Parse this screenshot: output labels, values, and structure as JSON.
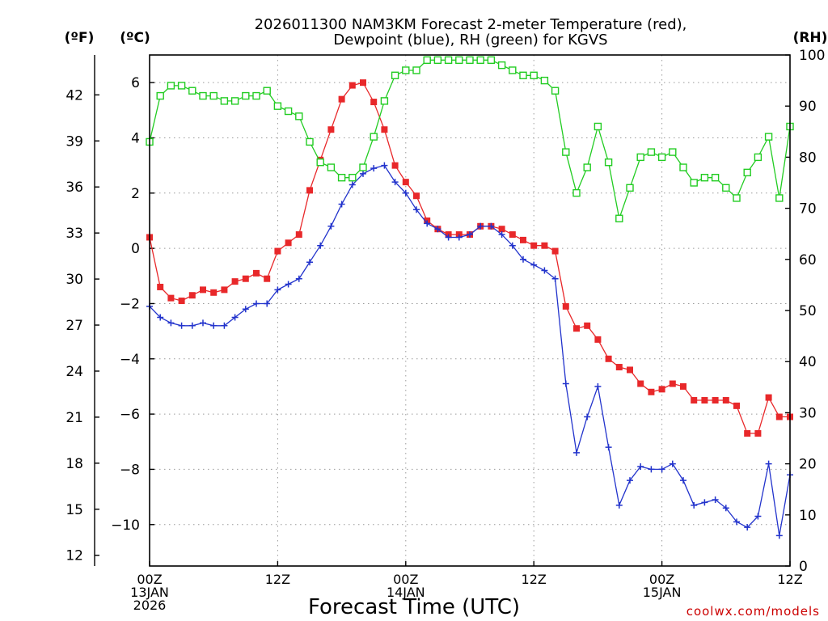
{
  "chart_data": {
    "type": "line",
    "title_line1": "2026011300 NAM3KM Forecast 2-meter Temperature (red),",
    "title_line2": "Dewpoint (blue), RH (green) for KGVS",
    "xlabel": "Forecast Time (UTC)",
    "credit": "coolwx.com/models",
    "units": {
      "fahrenheit": "(ºF)",
      "celsius": "(ºC)",
      "rh": "(RH)"
    },
    "x_range_hours": [
      0,
      60
    ],
    "y_celsius_range": [
      -11.5,
      7
    ],
    "y_rh_range": [
      0,
      100
    ],
    "celsius_ticks": [
      6,
      4,
      2,
      0,
      -2,
      -4,
      -6,
      -8,
      -10
    ],
    "celsius_tick_labels": [
      "6",
      "4",
      "2",
      "0",
      "−2",
      "−4",
      "−6",
      "−8",
      "−10"
    ],
    "fahrenheit_ticks": [
      42,
      39,
      36,
      33,
      30,
      27,
      24,
      21,
      18,
      15,
      12
    ],
    "fahrenheit_tick_labels": [
      "42",
      "39",
      "36",
      "33",
      "30",
      "27",
      "24",
      "21",
      "18",
      "15",
      "12"
    ],
    "rh_ticks": [
      100,
      90,
      80,
      70,
      60,
      50,
      40,
      30,
      20,
      10,
      0
    ],
    "rh_tick_labels": [
      "100",
      "90",
      "80",
      "70",
      "60",
      "50",
      "40",
      "30",
      "20",
      "10",
      "0"
    ],
    "x_ticks": [
      {
        "hour": 0,
        "lines": [
          "00Z",
          "13JAN",
          "2026"
        ]
      },
      {
        "hour": 12,
        "lines": [
          "12Z"
        ]
      },
      {
        "hour": 24,
        "lines": [
          "00Z",
          "14JAN"
        ]
      },
      {
        "hour": 36,
        "lines": [
          "12Z"
        ]
      },
      {
        "hour": 48,
        "lines": [
          "00Z",
          "15JAN"
        ]
      },
      {
        "hour": 60,
        "lines": [
          "12Z"
        ]
      }
    ],
    "series": [
      {
        "name": "2-meter Temperature",
        "units": "degC",
        "color": "#e8282a",
        "marker": "filled-square",
        "x": [
          0,
          1,
          2,
          3,
          4,
          5,
          6,
          7,
          8,
          9,
          10,
          11,
          12,
          13,
          14,
          15,
          16,
          17,
          18,
          19,
          20,
          21,
          22,
          23,
          24,
          25,
          26,
          27,
          28,
          29,
          30,
          31,
          32,
          33,
          34,
          35,
          36,
          37,
          38,
          39,
          40,
          41,
          42,
          43,
          44,
          45,
          46,
          47,
          48,
          49,
          50,
          51,
          52,
          53,
          54,
          55,
          56,
          57,
          58,
          59,
          60
        ],
        "values": [
          0.4,
          -1.4,
          -1.8,
          -1.9,
          -1.7,
          -1.5,
          -1.6,
          -1.5,
          -1.2,
          -1.1,
          -0.9,
          -1.1,
          -0.1,
          0.2,
          0.5,
          2.1,
          3.2,
          4.3,
          5.4,
          5.9,
          6.0,
          5.3,
          4.3,
          3.0,
          2.4,
          1.9,
          1.0,
          0.7,
          0.5,
          0.5,
          0.5,
          0.8,
          0.8,
          0.7,
          0.5,
          0.3,
          0.1,
          0.1,
          -0.1,
          -2.1,
          -2.9,
          -2.8,
          -3.3,
          -4.0,
          -4.3,
          -4.4,
          -4.9,
          -5.2,
          -5.1,
          -4.9,
          -5.0,
          -5.5,
          -5.5,
          -5.5,
          -5.5,
          -5.7,
          -6.7,
          -6.7,
          -5.4,
          -6.1,
          -6.1
        ]
      },
      {
        "name": "Dewpoint",
        "units": "degC",
        "color": "#2233cc",
        "marker": "plus",
        "x": [
          0,
          1,
          2,
          3,
          4,
          5,
          6,
          7,
          8,
          9,
          10,
          11,
          12,
          13,
          14,
          15,
          16,
          17,
          18,
          19,
          20,
          21,
          22,
          23,
          24,
          25,
          26,
          27,
          28,
          29,
          30,
          31,
          32,
          33,
          34,
          35,
          36,
          37,
          38,
          39,
          40,
          41,
          42,
          43,
          44,
          45,
          46,
          47,
          48,
          49,
          50,
          51,
          52,
          53,
          54,
          55,
          56,
          57,
          58,
          59,
          60
        ],
        "values": [
          -2.1,
          -2.5,
          -2.7,
          -2.8,
          -2.8,
          -2.7,
          -2.8,
          -2.8,
          -2.5,
          -2.2,
          -2.0,
          -2.0,
          -1.5,
          -1.3,
          -1.1,
          -0.5,
          0.1,
          0.8,
          1.6,
          2.3,
          2.7,
          2.9,
          3.0,
          2.4,
          2.0,
          1.4,
          0.9,
          0.7,
          0.4,
          0.4,
          0.5,
          0.8,
          0.8,
          0.5,
          0.1,
          -0.4,
          -0.6,
          -0.8,
          -1.1,
          -4.9,
          -7.4,
          -6.1,
          -5.0,
          -7.2,
          -9.3,
          -8.4,
          -7.9,
          -8.0,
          -8.0,
          -7.8,
          -8.4,
          -9.3,
          -9.2,
          -9.1,
          -9.4,
          -9.9,
          -10.1,
          -9.7,
          -7.8,
          -10.4,
          -8.2
        ]
      },
      {
        "name": "RH",
        "units": "percent",
        "color": "#22cc22",
        "marker": "open-square",
        "x": [
          0,
          1,
          2,
          3,
          4,
          5,
          6,
          7,
          8,
          9,
          10,
          11,
          12,
          13,
          14,
          15,
          16,
          17,
          18,
          19,
          20,
          21,
          22,
          23,
          24,
          25,
          26,
          27,
          28,
          29,
          30,
          31,
          32,
          33,
          34,
          35,
          36,
          37,
          38,
          39,
          40,
          41,
          42,
          43,
          44,
          45,
          46,
          47,
          48,
          49,
          50,
          51,
          52,
          53,
          54,
          55,
          56,
          57,
          58,
          59,
          60
        ],
        "values": [
          83,
          92,
          94,
          94,
          93,
          92,
          92,
          91,
          91,
          92,
          92,
          93,
          90,
          89,
          88,
          83,
          79,
          78,
          76,
          76,
          78,
          84,
          91,
          96,
          97,
          97,
          99,
          99,
          99,
          99,
          99,
          99,
          99,
          98,
          97,
          96,
          96,
          95,
          93,
          81,
          73,
          78,
          86,
          79,
          68,
          74,
          80,
          81,
          80,
          81,
          78,
          75,
          76,
          76,
          74,
          72,
          77,
          80,
          84,
          72,
          86
        ]
      }
    ]
  }
}
